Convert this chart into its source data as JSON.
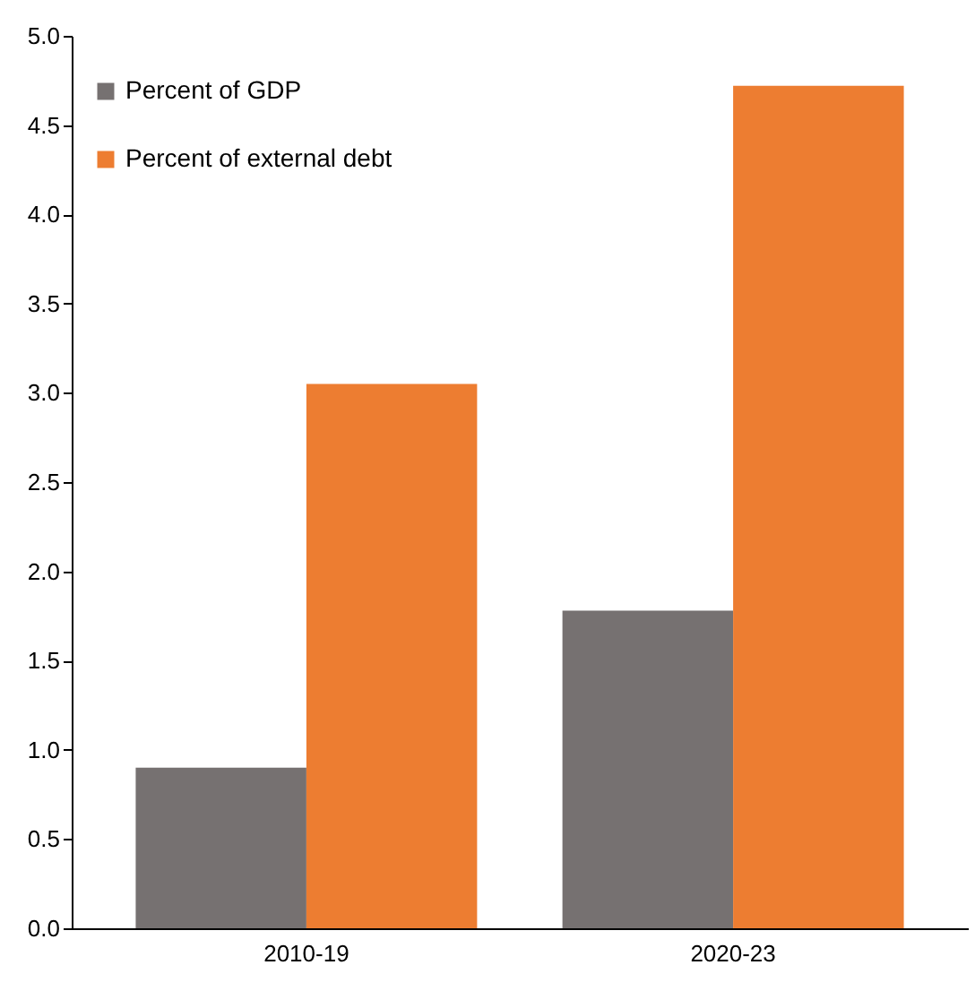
{
  "chart_data": {
    "type": "bar",
    "categories": [
      "2010-19",
      "2020-23"
    ],
    "series": [
      {
        "name": "Percent of GDP",
        "color": "#767171",
        "values": [
          0.9,
          1.78
        ]
      },
      {
        "name": "Percent of external debt",
        "color": "#ed7d31",
        "values": [
          3.05,
          4.72
        ]
      }
    ],
    "ylim": [
      0,
      5
    ],
    "yticks": [
      {
        "value": 0,
        "label": "0.0"
      },
      {
        "value": 0.5,
        "label": "0.5"
      },
      {
        "value": 1,
        "label": "1.0"
      },
      {
        "value": 1.5,
        "label": "1.5"
      },
      {
        "value": 2,
        "label": "2.0"
      },
      {
        "value": 2.5,
        "label": "2.5"
      },
      {
        "value": 3,
        "label": "3.0"
      },
      {
        "value": 3.5,
        "label": "3.5"
      },
      {
        "value": 4,
        "label": "4.0"
      },
      {
        "value": 4.5,
        "label": "4.5"
      },
      {
        "value": 5,
        "label": "5.0"
      }
    ],
    "grid": false,
    "legend": "top left"
  }
}
